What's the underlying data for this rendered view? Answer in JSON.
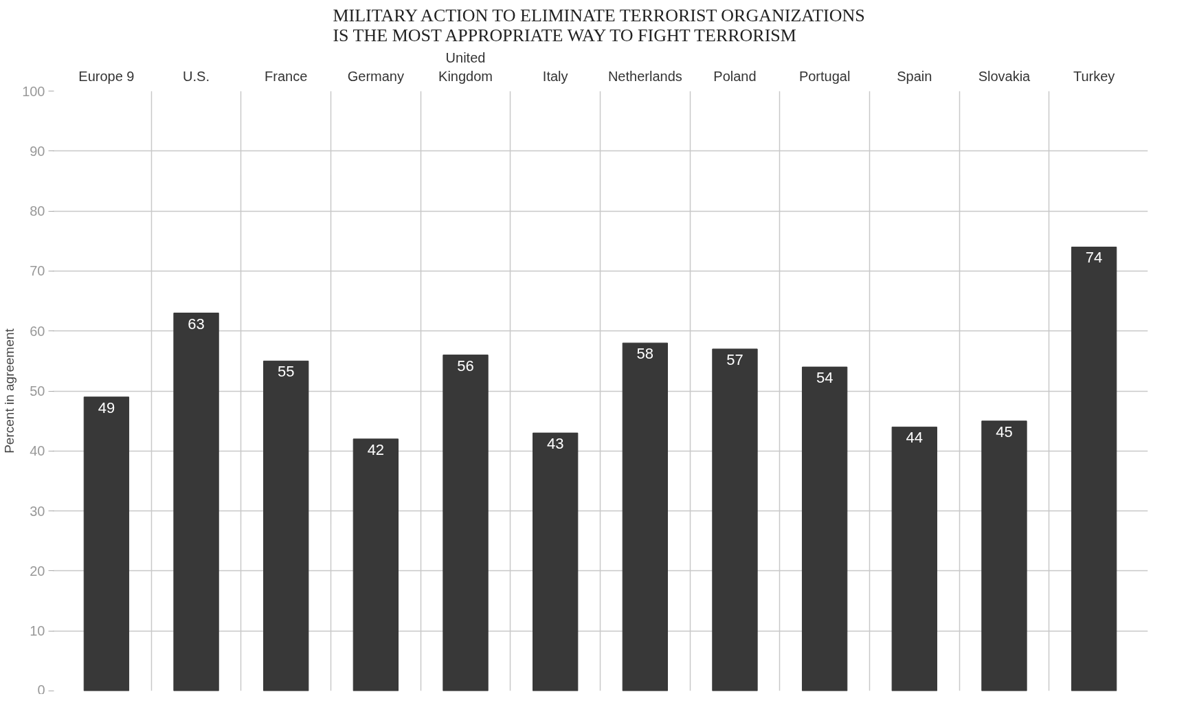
{
  "chart_data": {
    "type": "bar",
    "title": "MILITARY ACTION TO ELIMINATE TERRORIST ORGANIZATIONS\nIS THE MOST APPROPRIATE WAY TO FIGHT TERRORISM",
    "ylabel": "Percent in agreement",
    "categories": [
      "Europe 9",
      "U.S.",
      "France",
      "Germany",
      "United Kingdom",
      "Italy",
      "Netherlands",
      "Poland",
      "Portugal",
      "Spain",
      "Slovakia",
      "Turkey"
    ],
    "values": [
      49,
      63,
      55,
      42,
      56,
      43,
      58,
      57,
      54,
      44,
      45,
      74
    ],
    "color": "#383838",
    "ylim": [
      0,
      100
    ],
    "yticks": [
      0,
      10,
      20,
      30,
      40,
      50,
      60,
      70,
      80,
      90,
      100
    ],
    "grid": true,
    "data_labels": true
  }
}
